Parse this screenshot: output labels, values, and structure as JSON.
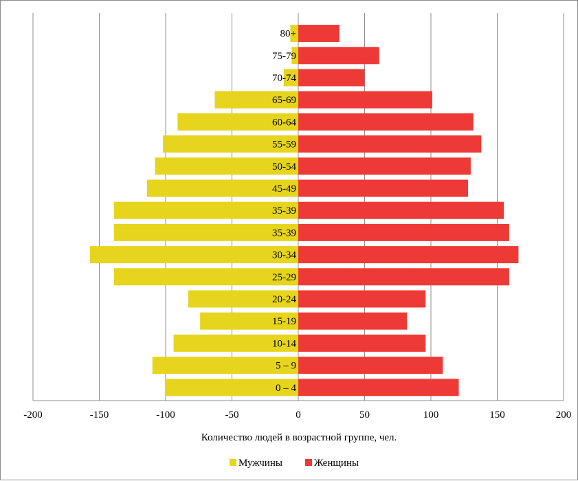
{
  "chart_data": {
    "type": "bar",
    "orientation": "horizontal",
    "layout": "population-pyramid",
    "categories": [
      "0 – 4",
      "5 – 9",
      "10-14",
      "15-19",
      "20-24",
      "25-29",
      "30-34",
      "35-39",
      "35-39",
      "45-49",
      "50-54",
      "55-59",
      "60-64",
      "65-69",
      "70-74",
      "75-79",
      "80+"
    ],
    "series": [
      {
        "name": "Мужчины",
        "color": "#e6d51c",
        "values": [
          -100,
          -110,
          -94,
          -74,
          -83,
          -139,
          -157,
          -139,
          -139,
          -114,
          -108,
          -102,
          -91,
          -63,
          -11,
          -5,
          -6
        ]
      },
      {
        "name": "Женщины",
        "color": "#ee3a36",
        "values": [
          121,
          109,
          96,
          82,
          96,
          159,
          166,
          159,
          155,
          128,
          130,
          138,
          132,
          101,
          50,
          61,
          31
        ]
      }
    ],
    "xlabel": "Количество людей в возрастной группе, чел.",
    "ylabel": "",
    "xlim": [
      -200,
      200
    ],
    "xticks": [
      -200,
      -150,
      -100,
      -50,
      0,
      50,
      100,
      150,
      200
    ],
    "xtick_labels": [
      "-200",
      "-150",
      "-100",
      "-50",
      "0",
      "50",
      "100",
      "150",
      "200"
    ],
    "grid": true,
    "legend_position": "bottom"
  }
}
